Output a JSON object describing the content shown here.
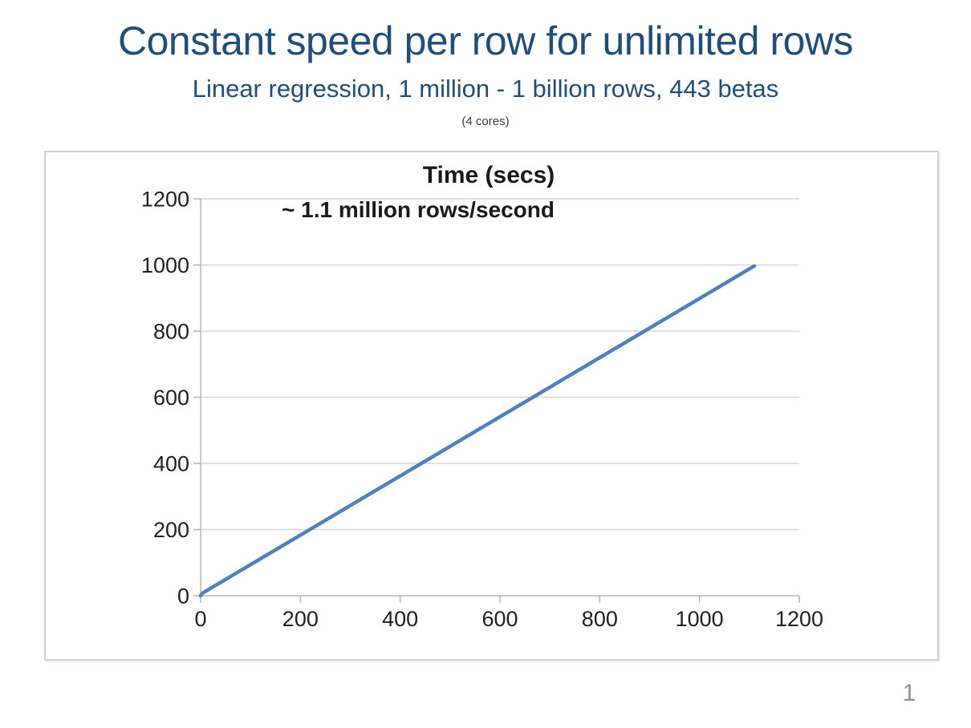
{
  "slide": {
    "title": "Constant speed per row for unlimited rows",
    "subtitle": "Linear regression, 1 million - 1 billion rows, 443 betas",
    "note": "(4 cores)",
    "page_number": "1"
  },
  "chart_data": {
    "type": "line",
    "title": "Time (secs)",
    "annotation": "~ 1.1 million rows/second",
    "xlabel": "",
    "ylabel": "",
    "xlim": [
      0,
      1200
    ],
    "ylim": [
      0,
      1200
    ],
    "x_ticks": [
      0,
      200,
      400,
      600,
      800,
      1000,
      1200
    ],
    "y_ticks": [
      0,
      200,
      400,
      600,
      800,
      1000,
      1200
    ],
    "grid": "horizontal",
    "legend": "none",
    "markers": "none",
    "series": [
      {
        "name": "Time (secs)",
        "color": "#4F81BD",
        "points": [
          [
            0,
            0
          ],
          [
            4,
            8
          ],
          [
            1110,
            997
          ]
        ]
      }
    ]
  },
  "colors": {
    "heading": "#1F4E79",
    "note_text": "#3B3B3B",
    "chart_text": "#1A1A1A",
    "axis_labels": "#1F1F1F",
    "series_line": "#4F81BD",
    "gridline": "#D6D6D6",
    "axis_line": "#B5B5B5",
    "chart_border": "#CFCFCF",
    "page_number": "#8F8F8F",
    "background": "#FFFFFF"
  }
}
